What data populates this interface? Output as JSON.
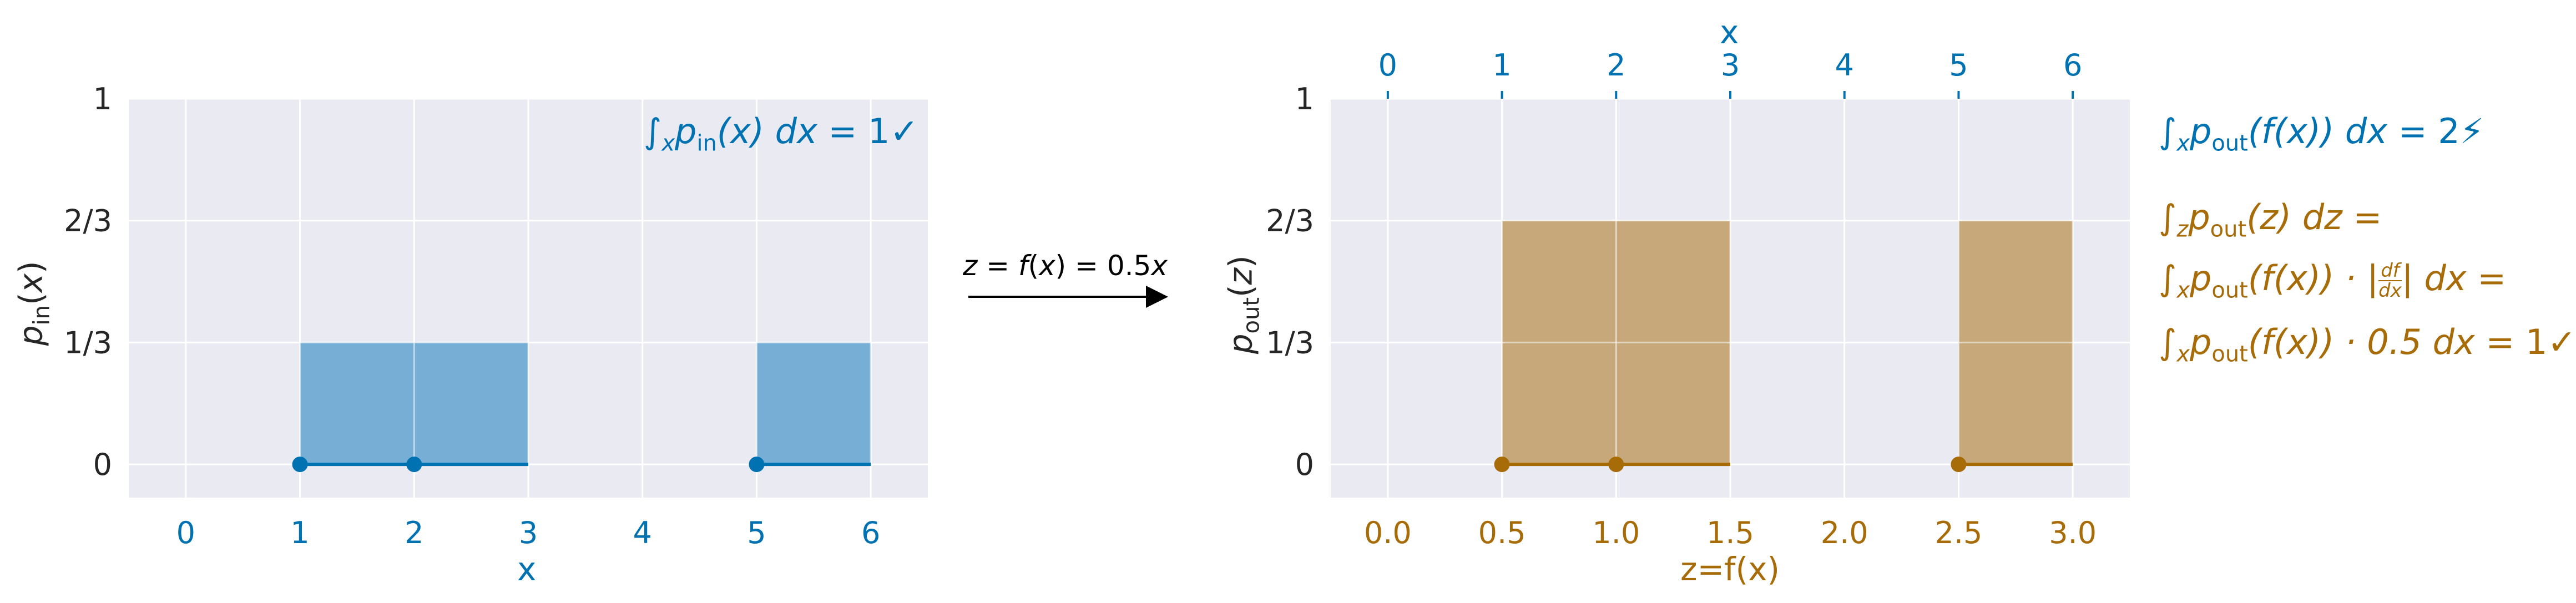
{
  "chart_data": [
    {
      "type": "area",
      "xlabel": "x",
      "ylabel": "p_in(x)",
      "xlim": [
        -0.5,
        6.5
      ],
      "ylim": [
        -0.0909,
        1.0
      ],
      "xticks": [
        0,
        1,
        2,
        3,
        4,
        5,
        6
      ],
      "xtick_labels": [
        "0",
        "1",
        "2",
        "3",
        "4",
        "5",
        "6"
      ],
      "yticks": [
        0,
        0.3333,
        0.6667,
        1
      ],
      "ytick_labels": [
        "0",
        "1/3",
        "2/3",
        "1"
      ],
      "grid": true,
      "color": "#0072b2",
      "fill_color": "#77aed5",
      "segments": [
        {
          "x_start": 1,
          "x_end": 3,
          "density": 0.3333
        },
        {
          "x_start": 5,
          "x_end": 6,
          "density": 0.3333
        }
      ],
      "points": [
        1,
        2,
        5
      ],
      "annotation": {
        "left": "∫",
        "sub": "x",
        "main": "p",
        "sub2": "in",
        "rest": "(x) dx = 1✓"
      }
    },
    {
      "type": "area",
      "xlabel": "z=f(x)",
      "top_xlabel": "x",
      "ylabel": "p_out(z)",
      "xlim": [
        -0.25,
        3.25
      ],
      "ylim": [
        -0.0909,
        1.0
      ],
      "xticks": [
        0.0,
        0.5,
        1.0,
        1.5,
        2.0,
        2.5,
        3.0
      ],
      "xtick_labels": [
        "0.0",
        "0.5",
        "1.0",
        "1.5",
        "2.0",
        "2.5",
        "3.0"
      ],
      "top_xtick_labels": [
        "0",
        "1",
        "2",
        "3",
        "4",
        "5",
        "6"
      ],
      "yticks": [
        0,
        0.3333,
        0.6667,
        1
      ],
      "ytick_labels": [
        "0",
        "1/3",
        "2/3",
        "1"
      ],
      "grid": true,
      "color": "#a76b07",
      "fill_color": "#c6a87a",
      "segments": [
        {
          "x_start": 0.5,
          "x_end": 1.5,
          "density": 0.6667
        },
        {
          "x_start": 2.5,
          "x_end": 3.0,
          "density": 0.6667
        }
      ],
      "points": [
        0.5,
        1.0,
        2.5
      ],
      "annotations": [
        "∫x pout(f(x)) dx = 2⚡",
        "∫z pout(z) dz =",
        "∫x pout(f(x)) · |df/dx| dx =",
        "∫x pout(f(x)) · 0.5 dx = 1✓"
      ]
    }
  ],
  "transform_label": "z = f(x) = 0.5x",
  "colors": {
    "blue": "#0072b2",
    "orange": "#a76b07",
    "panel": "#e9eaf2",
    "grid": "#ffffff",
    "text": "#262626"
  }
}
